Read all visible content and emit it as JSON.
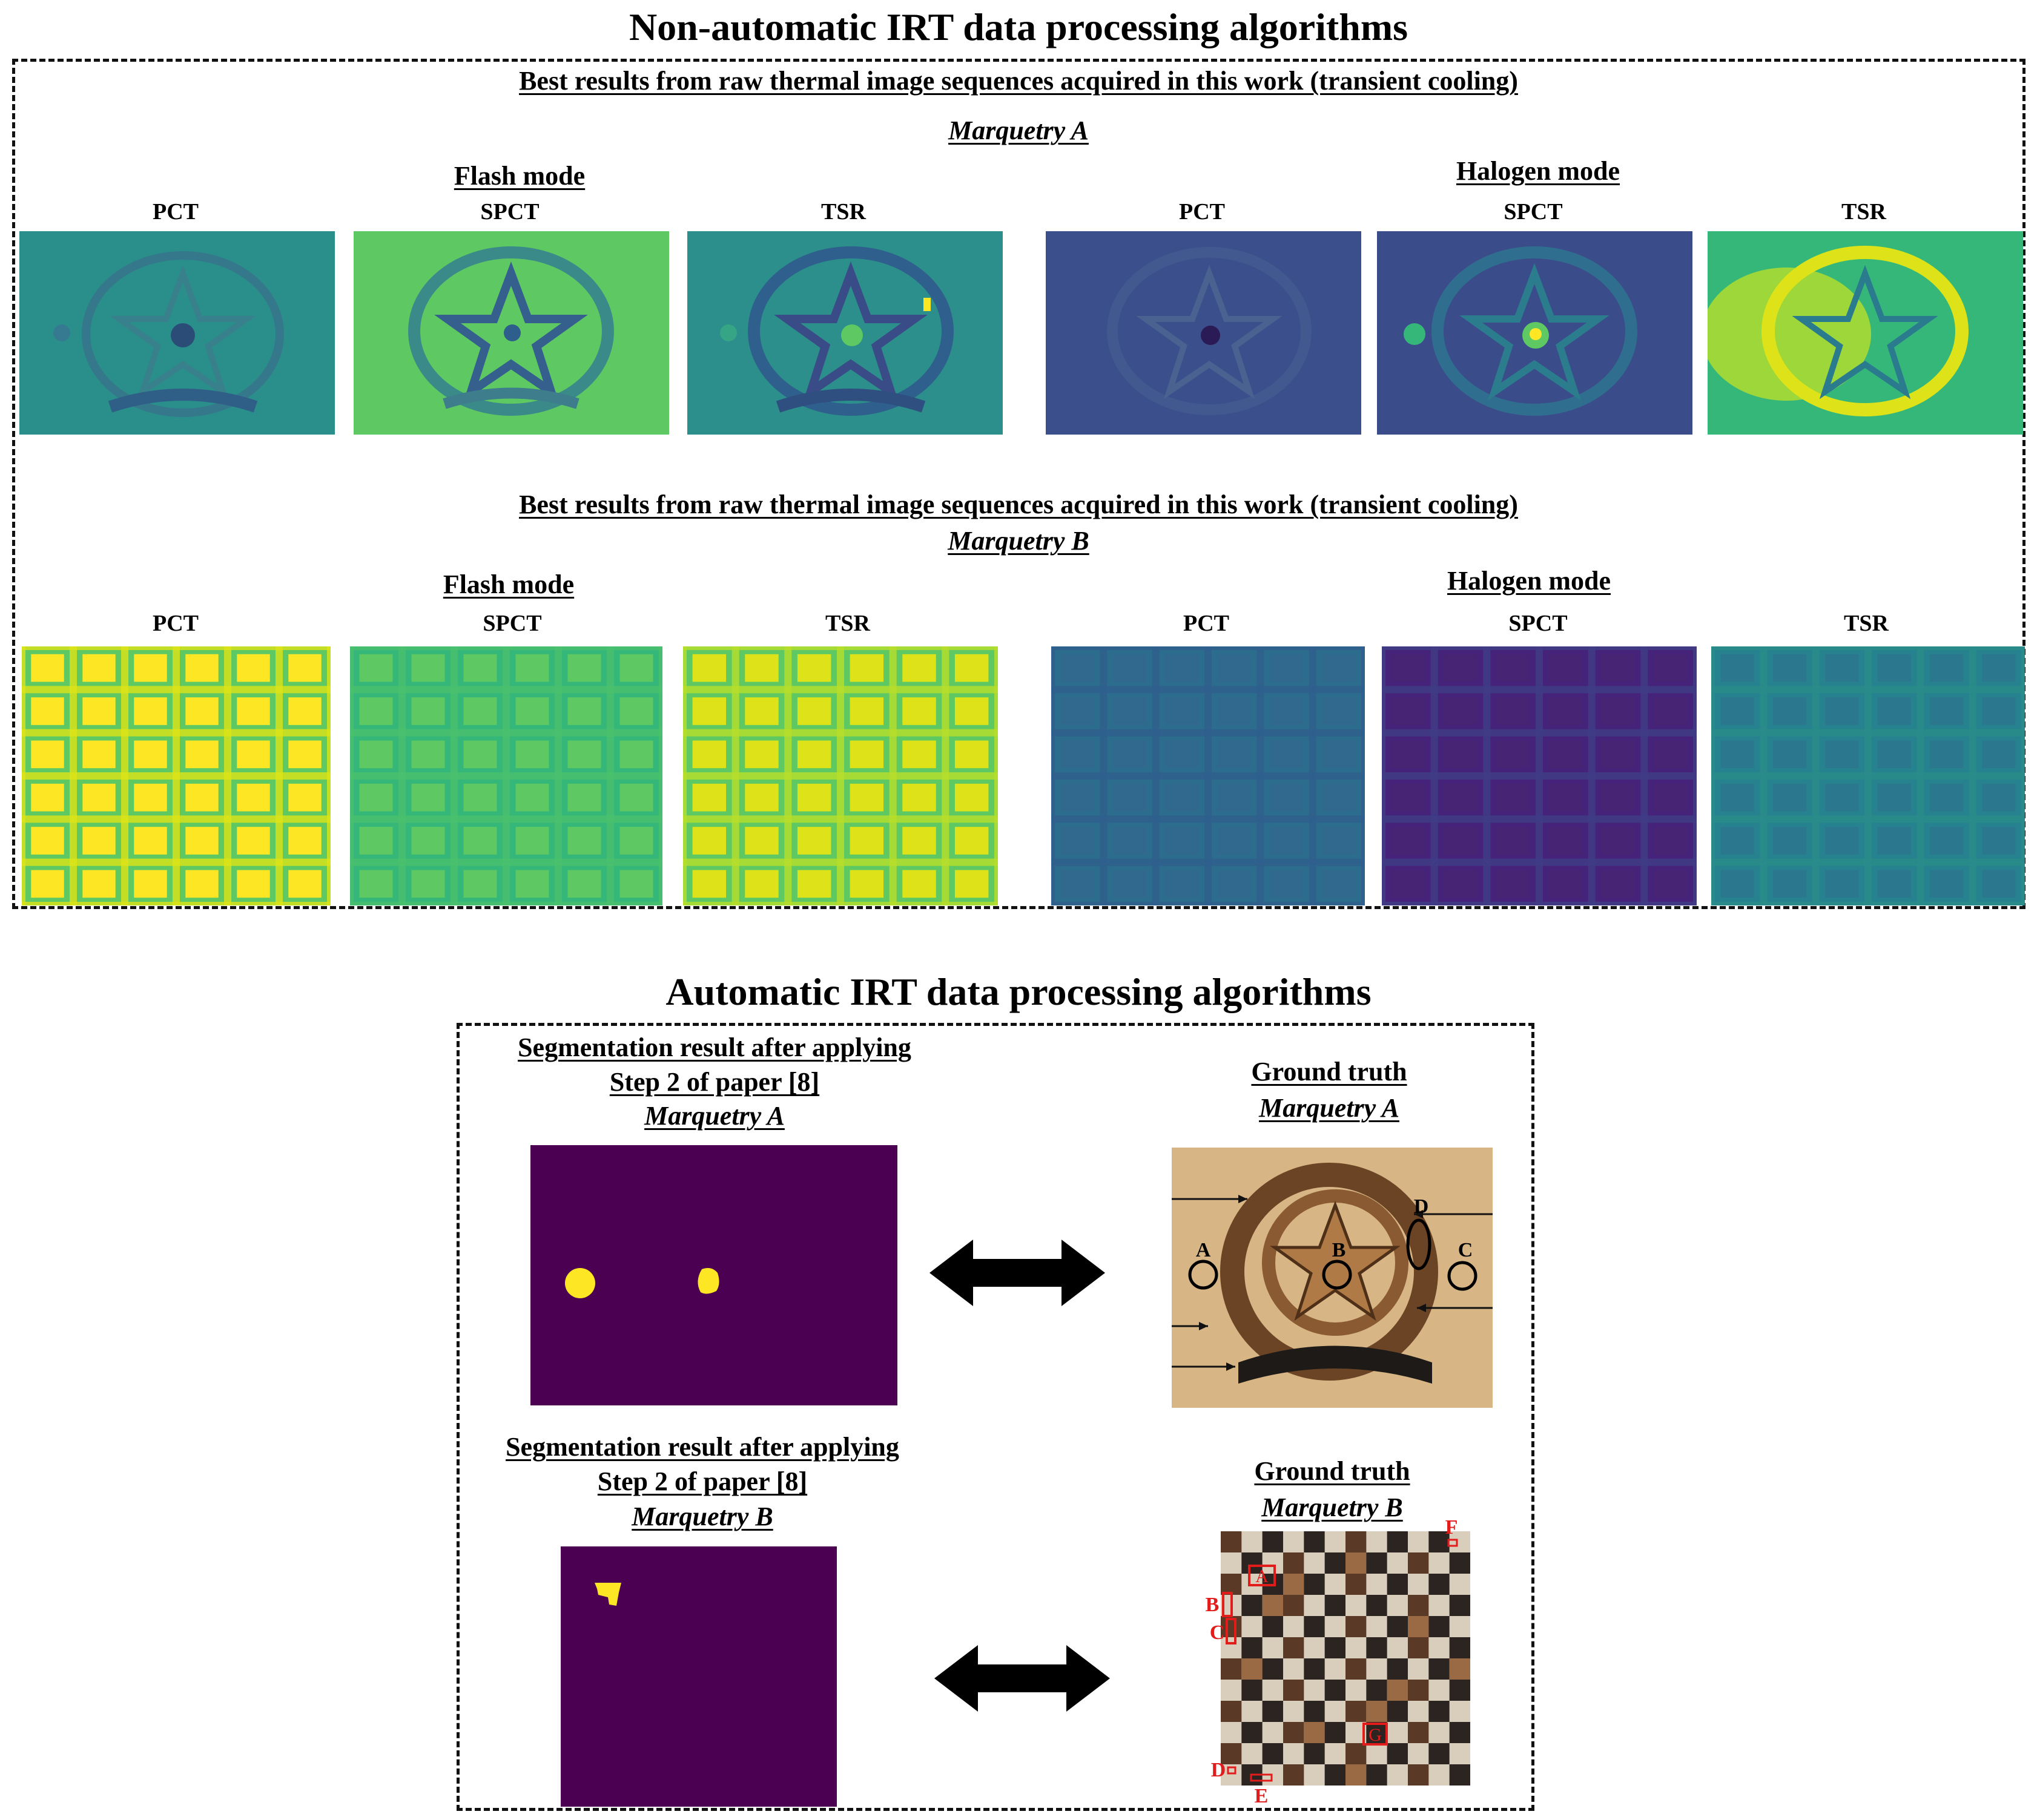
{
  "top_section": {
    "title": "Non-automatic IRT data processing algorithms",
    "block_a": {
      "heading": "Best results from raw thermal image sequences acquired in this work (transient cooling)",
      "specimen": "Marquetry A",
      "flash_mode": "Flash mode",
      "halogen_mode": "Halogen mode",
      "methods": [
        "PCT",
        "SPCT",
        "TSR",
        "PCT",
        "SPCT",
        "TSR"
      ]
    },
    "block_b": {
      "heading": "Best results from raw thermal image sequences acquired in this work (transient cooling)",
      "specimen": "Marquetry B",
      "flash_mode": "Flash mode",
      "halogen_mode": "Halogen mode",
      "methods": [
        "PCT",
        "SPCT",
        "TSR",
        "PCT",
        "SPCT",
        "TSR"
      ]
    }
  },
  "bottom_section": {
    "title": "Automatic IRT data processing algorithms",
    "seg_a": {
      "line1": "Segmentation result after applying",
      "line2": "Step 2 of paper [8]",
      "line3": "Marquetry A"
    },
    "gt_a": {
      "line1": "Ground truth",
      "line2": "Marquetry A",
      "markers": [
        "A",
        "B",
        "C",
        "D"
      ]
    },
    "seg_b": {
      "line1": "Segmentation result after applying",
      "line2": "Step 2 of paper [8]",
      "line3": "Marquetry B"
    },
    "gt_b": {
      "line1": "Ground truth",
      "line2": "Marquetry B",
      "markers": [
        "A",
        "B",
        "C",
        "D",
        "E",
        "F",
        "G"
      ]
    }
  },
  "colors": {
    "viridis_purple": "#440154",
    "viridis_blue": "#31688e",
    "viridis_teal": "#21918c",
    "viridis_green": "#5ec962",
    "viridis_yellow": "#fde725",
    "segmentation_background": "#4b0052",
    "defect_marker_red": "#e21b1b",
    "wood_light": "#d8b585"
  }
}
